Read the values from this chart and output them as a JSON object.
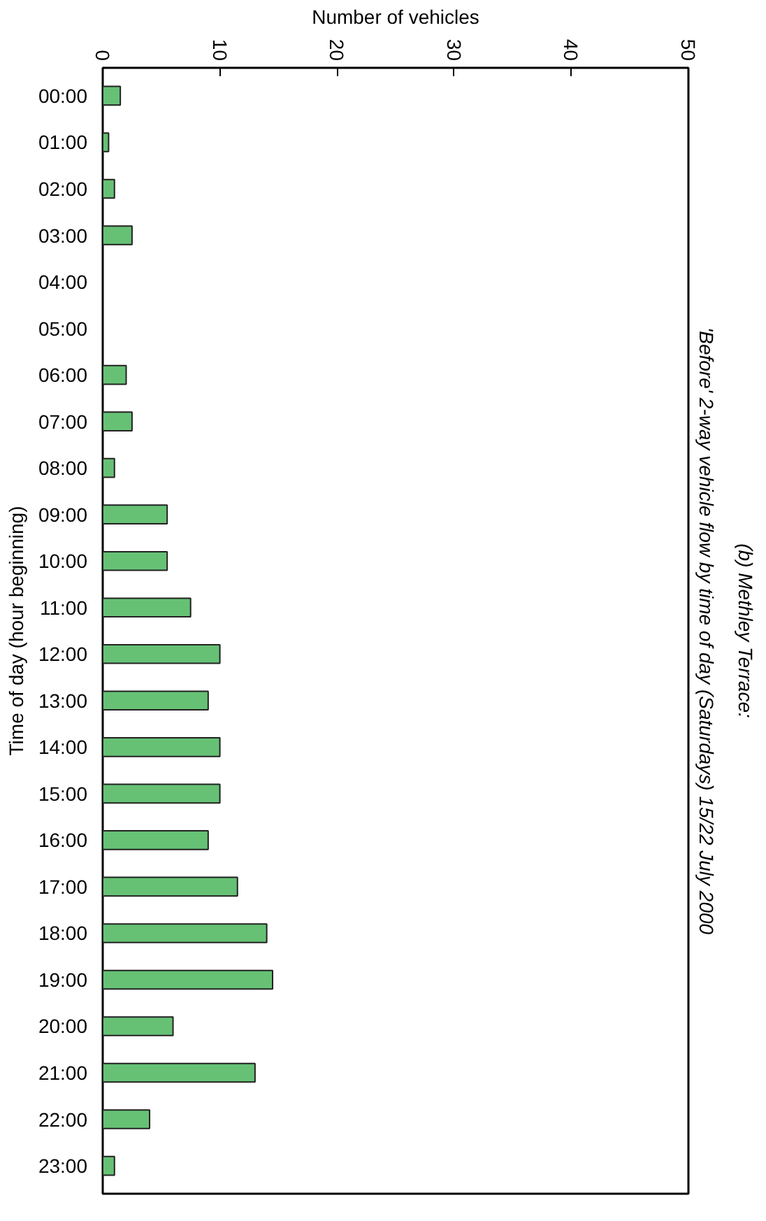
{
  "chart_data": {
    "type": "bar",
    "orientation": "horizontal",
    "title": "(b) Methley Terrace:",
    "subtitle": "'Before' 2-way vehicle flow by time of day (Saturdays) 15/22 July 2000",
    "xlabel": "Number of vehicles",
    "ylabel": "Time of day (hour beginning)",
    "categories": [
      "00:00",
      "01:00",
      "02:00",
      "03:00",
      "04:00",
      "05:00",
      "06:00",
      "07:00",
      "08:00",
      "09:00",
      "10:00",
      "11:00",
      "12:00",
      "13:00",
      "14:00",
      "15:00",
      "16:00",
      "17:00",
      "18:00",
      "19:00",
      "20:00",
      "21:00",
      "22:00",
      "23:00"
    ],
    "values": [
      1.5,
      0.5,
      1,
      2.5,
      0,
      0,
      2,
      2.5,
      1,
      5.5,
      5.5,
      7.5,
      10,
      9,
      10,
      10,
      9,
      11.5,
      14,
      14.5,
      6,
      13,
      4,
      1
    ],
    "color": "#66c175",
    "xlim": [
      0,
      50
    ],
    "xticks": [
      0,
      10,
      20,
      30,
      40,
      50
    ],
    "grid": false
  }
}
